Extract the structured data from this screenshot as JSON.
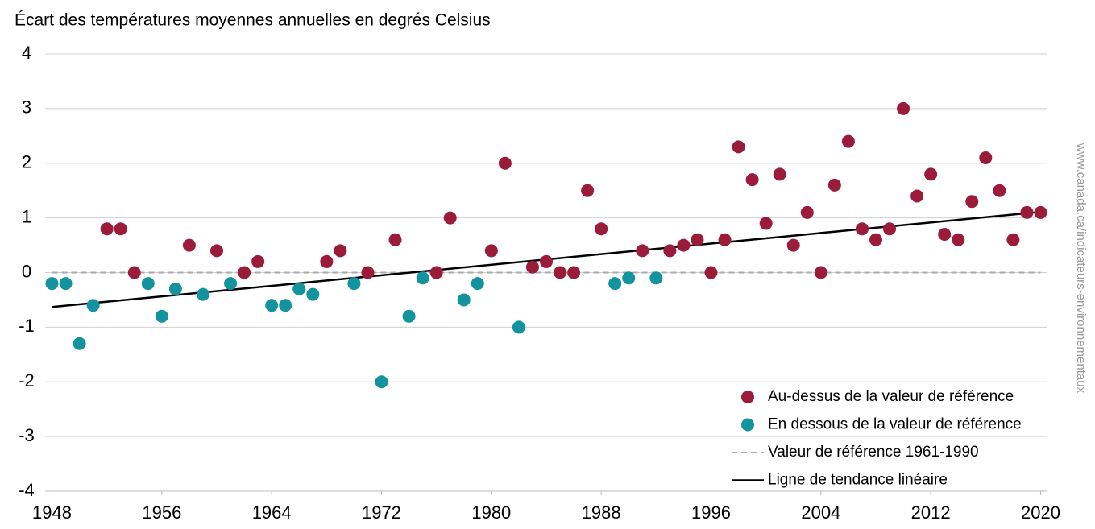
{
  "chart_data": {
    "type": "scatter",
    "title": "Écart des températures moyennes annuelles en degrés Celsius",
    "source": "www.canada.ca/indicateurs-environnementaux",
    "xlim": [
      1947.5,
      2020.5
    ],
    "xticks": [
      1948,
      1956,
      1964,
      1972,
      1980,
      1988,
      1996,
      2004,
      2012,
      2020
    ],
    "ylim": [
      -4,
      4
    ],
    "yticks": [
      -4,
      -3,
      -2,
      -1,
      0,
      1,
      2,
      3,
      4
    ],
    "grid": true,
    "legend": "lower right",
    "series": [
      {
        "name": "Au-dessus de la valeur de référence",
        "color": "#9b1b3a",
        "mode": "marker",
        "x": [
          1952,
          1953,
          1954,
          1958,
          1960,
          1962,
          1963,
          1968,
          1969,
          1971,
          1973,
          1976,
          1977,
          1980,
          1981,
          1983,
          1984,
          1985,
          1986,
          1987,
          1988,
          1991,
          1993,
          1994,
          1995,
          1996,
          1997,
          1998,
          1999,
          2000,
          2001,
          2002,
          2003,
          2004,
          2005,
          2006,
          2007,
          2008,
          2009,
          2010,
          2011,
          2012,
          2013,
          2014,
          2015,
          2016,
          2017,
          2018,
          2019,
          2020
        ],
        "values": [
          0.8,
          0.8,
          0,
          0.5,
          0.4,
          0,
          0.2,
          0.2,
          0.4,
          0,
          0.6,
          0,
          1,
          0.4,
          2,
          0.1,
          0.2,
          0,
          0,
          1.5,
          0.8,
          0.4,
          0.4,
          0.5,
          0.6,
          0,
          0.6,
          2.3,
          1.7,
          0.9,
          1.8,
          0.5,
          1.1,
          0,
          1.6,
          2.4,
          0.8,
          0.6,
          0.8,
          3,
          1.4,
          1.8,
          0.7,
          0.6,
          1.3,
          2.1,
          1.5,
          0.6,
          1.1,
          1.1
        ]
      },
      {
        "name": "En dessous de la valeur de référence",
        "color": "#12939e",
        "mode": "marker",
        "x": [
          1948,
          1949,
          1950,
          1951,
          1955,
          1956,
          1957,
          1959,
          1961,
          1964,
          1965,
          1966,
          1967,
          1970,
          1972,
          1974,
          1975,
          1978,
          1979,
          1982,
          1989,
          1990,
          1992
        ],
        "values": [
          -0.2,
          -0.2,
          -1.3,
          -0.6,
          -0.2,
          -0.8,
          -0.3,
          -0.4,
          -0.2,
          -0.6,
          -0.6,
          -0.3,
          -0.4,
          -0.2,
          -2,
          -0.8,
          -0.1,
          -0.5,
          -0.2,
          -1,
          -0.2,
          -0.1,
          -0.1
        ]
      },
      {
        "name": "Valeur de référence 1961-1990",
        "color": "#aaaaaa",
        "mode": "dashed-line",
        "x": [
          1948,
          2020
        ],
        "values": [
          0,
          0
        ]
      },
      {
        "name": "Ligne de tendance linéaire",
        "color": "#000000",
        "mode": "line",
        "x": [
          1948,
          2020
        ],
        "values": [
          -0.63,
          1.11
        ]
      }
    ]
  }
}
